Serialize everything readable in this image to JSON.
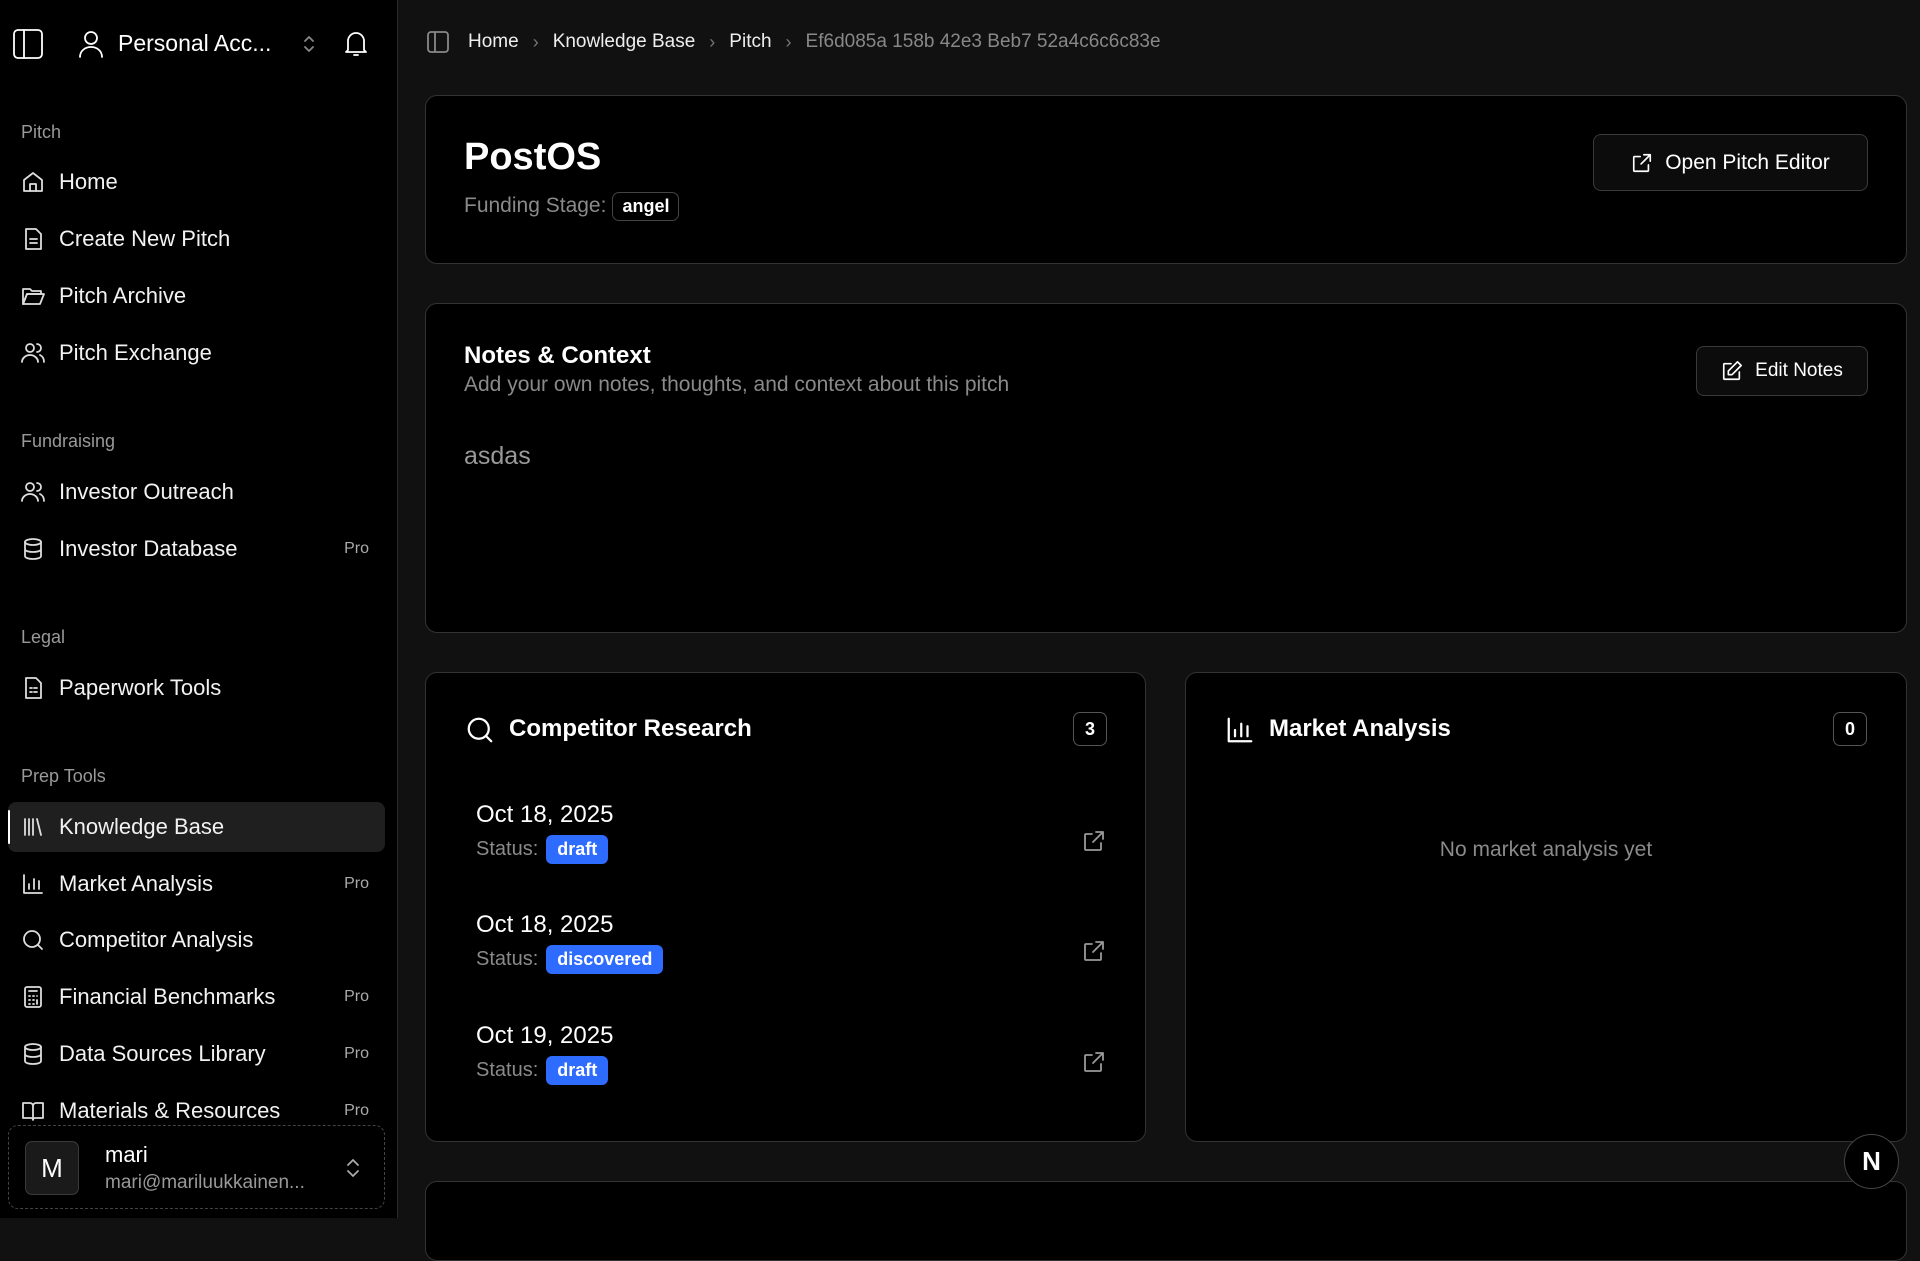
{
  "sidebar": {
    "account": "Personal Acc...",
    "sections": [
      {
        "label": "Pitch",
        "items": [
          {
            "label": "Home",
            "icon": "home-icon"
          },
          {
            "label": "Create New Pitch",
            "icon": "file-icon"
          },
          {
            "label": "Pitch Archive",
            "icon": "folder-icon"
          },
          {
            "label": "Pitch Exchange",
            "icon": "users-icon"
          }
        ]
      },
      {
        "label": "Fundraising",
        "items": [
          {
            "label": "Investor Outreach",
            "icon": "users-icon"
          },
          {
            "label": "Investor Database",
            "icon": "database-icon",
            "badge": "Pro"
          }
        ]
      },
      {
        "label": "Legal",
        "items": [
          {
            "label": "Paperwork Tools",
            "icon": "file-text-icon"
          }
        ]
      },
      {
        "label": "Prep Tools",
        "items": [
          {
            "label": "Knowledge Base",
            "icon": "library-icon",
            "active": true
          },
          {
            "label": "Market Analysis",
            "icon": "bar-chart-icon",
            "badge": "Pro"
          },
          {
            "label": "Competitor Analysis",
            "icon": "search-icon"
          },
          {
            "label": "Financial Benchmarks",
            "icon": "calculator-icon",
            "badge": "Pro"
          },
          {
            "label": "Data Sources Library",
            "icon": "database-icon",
            "badge": "Pro"
          },
          {
            "label": "Materials & Resources",
            "icon": "book-icon",
            "badge": "Pro"
          }
        ]
      }
    ],
    "user": {
      "initial": "M",
      "name": "mari",
      "email": "mari@mariluukkainen..."
    }
  },
  "breadcrumb": [
    "Home",
    "Knowledge Base",
    "Pitch",
    "Ef6d085a 158b 42e3 Beb7 52a4c6c6c83e"
  ],
  "pitch": {
    "title": "PostOS",
    "funding_label": "Funding Stage:",
    "funding_stage": "angel",
    "open_editor": "Open Pitch Editor"
  },
  "notes": {
    "title": "Notes & Context",
    "subtitle": "Add your own notes, thoughts, and context about this pitch",
    "edit": "Edit Notes",
    "content": "asdas"
  },
  "competitor": {
    "title": "Competitor Research",
    "count": "3",
    "status_label": "Status:",
    "items": [
      {
        "date": "Oct 18, 2025",
        "status": "draft"
      },
      {
        "date": "Oct 18, 2025",
        "status": "discovered"
      },
      {
        "date": "Oct 19, 2025",
        "status": "draft"
      }
    ]
  },
  "market": {
    "title": "Market Analysis",
    "count": "0",
    "empty": "No market analysis yet"
  },
  "floating": {
    "label": "N"
  },
  "colors": {
    "badge": "#2e6bff",
    "sidebar_bg": "#000000",
    "main_bg": "#111111"
  }
}
